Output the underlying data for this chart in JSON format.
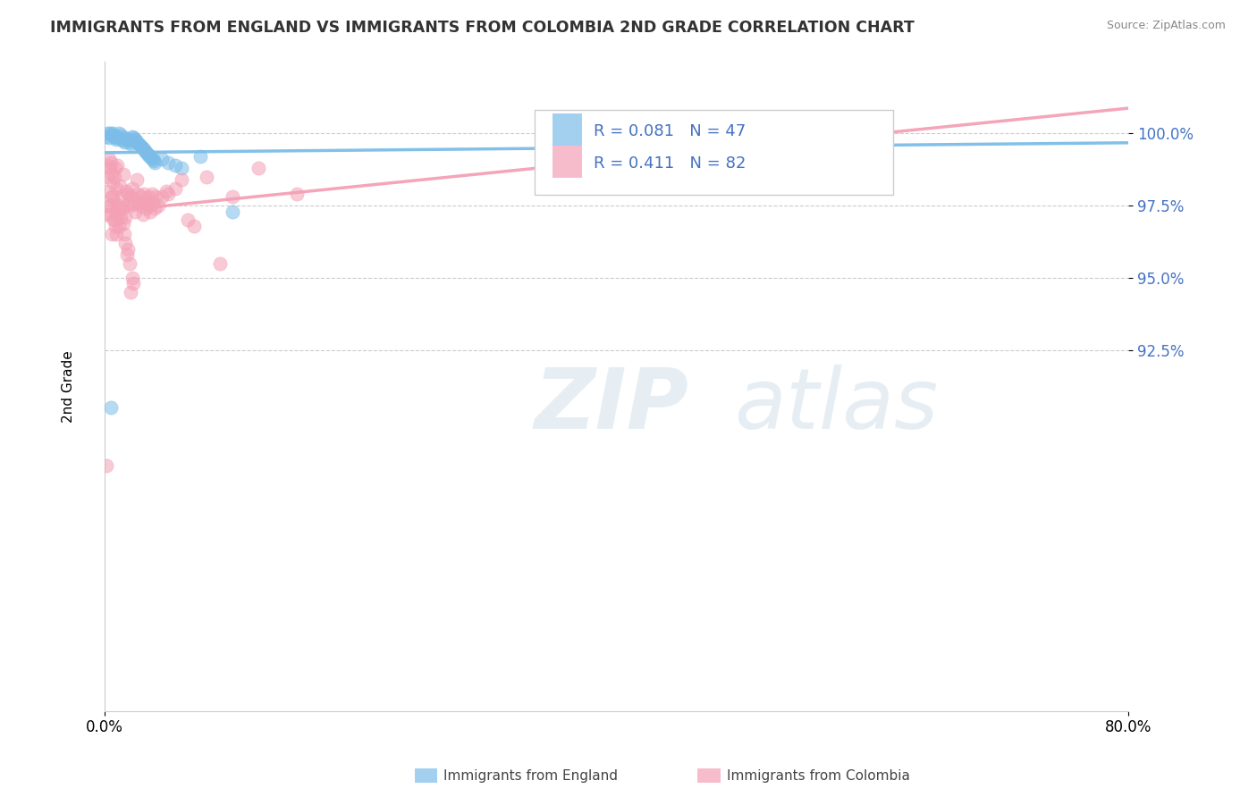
{
  "title": "IMMIGRANTS FROM ENGLAND VS IMMIGRANTS FROM COLOMBIA 2ND GRADE CORRELATION CHART",
  "source_text": "Source: ZipAtlas.com",
  "ylabel": "2nd Grade",
  "xlim": [
    0.0,
    80.0
  ],
  "ylim": [
    80.0,
    102.5
  ],
  "yticks": [
    92.5,
    95.0,
    97.5,
    100.0
  ],
  "ytick_labels": [
    "92.5%",
    "95.0%",
    "97.5%",
    "100.0%"
  ],
  "xticks": [
    0.0,
    80.0
  ],
  "xtick_labels": [
    "0.0%",
    "80.0%"
  ],
  "england_color": "#7BBDE8",
  "colombia_color": "#F4A0B5",
  "england_R": 0.081,
  "england_N": 47,
  "colombia_R": 0.411,
  "colombia_N": 82,
  "legend_england": "Immigrants from England",
  "legend_colombia": "Immigrants from Colombia",
  "watermark_zip": "ZIP",
  "watermark_atlas": "atlas",
  "england_scatter_x": [
    0.15,
    0.25,
    0.35,
    0.45,
    0.55,
    0.65,
    0.75,
    0.85,
    0.95,
    1.05,
    1.15,
    1.25,
    1.35,
    1.45,
    1.55,
    1.65,
    1.75,
    1.85,
    1.95,
    2.05,
    2.15,
    2.25,
    2.35,
    2.45,
    2.55,
    2.65,
    2.75,
    2.85,
    2.95,
    3.05,
    3.15,
    3.25,
    3.35,
    3.45,
    3.55,
    3.65,
    3.75,
    3.85,
    3.95,
    4.5,
    5.0,
    5.5,
    6.0,
    7.5,
    10.0,
    47.0,
    0.5
  ],
  "england_scatter_y": [
    99.9,
    100.0,
    99.85,
    100.0,
    99.95,
    100.0,
    99.9,
    99.85,
    99.8,
    99.9,
    100.0,
    99.95,
    99.8,
    99.75,
    99.7,
    99.85,
    99.8,
    99.75,
    99.7,
    99.65,
    99.9,
    99.85,
    99.8,
    99.75,
    99.7,
    99.65,
    99.6,
    99.55,
    99.5,
    99.45,
    99.4,
    99.35,
    99.3,
    99.25,
    99.2,
    99.15,
    99.1,
    99.05,
    99.0,
    99.1,
    99.0,
    98.9,
    98.8,
    99.2,
    97.3,
    100.0,
    90.5
  ],
  "colombia_scatter_x": [
    0.1,
    0.2,
    0.3,
    0.35,
    0.4,
    0.45,
    0.5,
    0.55,
    0.6,
    0.65,
    0.7,
    0.75,
    0.8,
    0.85,
    0.9,
    0.95,
    1.0,
    1.1,
    1.2,
    1.3,
    1.4,
    1.5,
    1.6,
    1.7,
    1.8,
    1.9,
    2.0,
    2.1,
    2.2,
    2.3,
    2.4,
    2.5,
    2.6,
    2.7,
    2.8,
    2.9,
    3.0,
    3.1,
    3.2,
    3.3,
    3.4,
    3.5,
    3.6,
    3.7,
    3.8,
    3.9,
    4.0,
    4.2,
    4.5,
    4.8,
    5.0,
    5.5,
    6.0,
    6.5,
    7.0,
    8.0,
    9.0,
    10.0,
    12.0,
    15.0,
    0.25,
    0.35,
    0.45,
    0.55,
    0.65,
    0.75,
    0.85,
    0.95,
    1.05,
    1.15,
    1.25,
    1.35,
    1.45,
    1.55,
    1.65,
    1.75,
    1.85,
    1.95,
    2.05,
    2.15,
    2.25,
    0.15
  ],
  "colombia_scatter_y": [
    97.2,
    98.0,
    98.5,
    99.1,
    98.8,
    97.5,
    99.0,
    98.6,
    97.8,
    98.3,
    97.0,
    98.5,
    97.6,
    98.8,
    97.3,
    98.1,
    98.9,
    97.5,
    98.2,
    97.8,
    97.4,
    98.6,
    97.1,
    98.0,
    97.9,
    97.6,
    97.8,
    97.5,
    98.1,
    97.7,
    97.3,
    98.4,
    97.9,
    97.6,
    97.5,
    97.8,
    97.2,
    97.9,
    97.4,
    97.6,
    97.8,
    97.5,
    97.3,
    97.9,
    97.6,
    97.4,
    97.8,
    97.5,
    97.8,
    98.0,
    97.9,
    98.1,
    98.4,
    97.0,
    96.8,
    98.5,
    95.5,
    97.8,
    98.8,
    97.9,
    98.9,
    97.2,
    97.5,
    96.5,
    97.8,
    97.0,
    96.8,
    96.5,
    97.2,
    96.8,
    97.1,
    97.4,
    96.9,
    96.5,
    96.2,
    95.8,
    96.0,
    95.5,
    94.5,
    95.0,
    94.8,
    88.5
  ]
}
